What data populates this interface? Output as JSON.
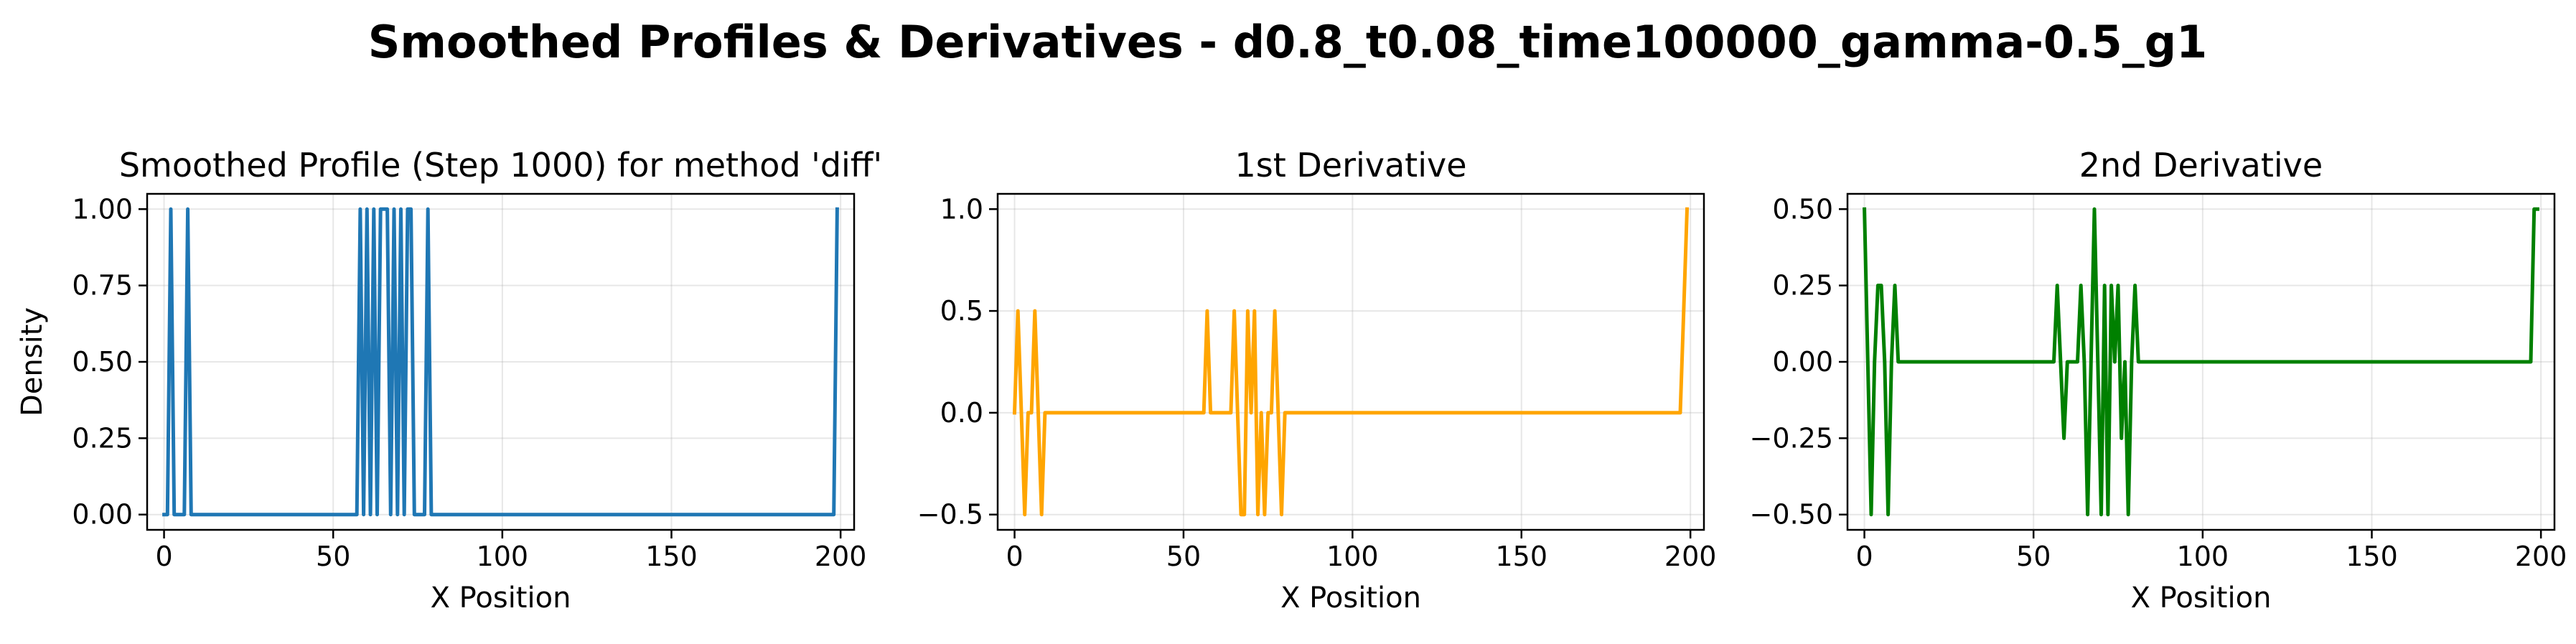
{
  "figure": {
    "title": "Smoothed Profiles & Derivatives - d0.8_t0.08_time100000_gamma-0.5_g1"
  },
  "chart_data": [
    {
      "type": "line",
      "title": "Smoothed Profile (Step 1000) for method 'diff'",
      "xlabel": "X Position",
      "ylabel": "Density",
      "xlim": [
        -5,
        204
      ],
      "ylim": [
        -0.05,
        1.05
      ],
      "xticks": [
        0,
        50,
        100,
        150,
        200
      ],
      "yticks": [
        0.0,
        0.25,
        0.5,
        0.75,
        1.0
      ],
      "xtick_labels": [
        "0",
        "50",
        "100",
        "150",
        "200"
      ],
      "ytick_labels": [
        "0.00",
        "0.25",
        "0.50",
        "0.75",
        "1.00"
      ],
      "grid": true,
      "series": [
        {
          "color": "#1f77b4",
          "x": [
            0,
            1,
            2,
            3,
            6,
            7,
            8,
            57,
            58,
            59,
            60,
            61,
            62,
            63,
            64,
            65,
            66,
            67,
            68,
            69,
            70,
            71,
            72,
            73,
            74,
            77,
            78,
            79,
            198,
            199
          ],
          "y": [
            0,
            0,
            1,
            0,
            0,
            1,
            0,
            0,
            1,
            0,
            1,
            0,
            1,
            0,
            1,
            1,
            1,
            0,
            1,
            0,
            1,
            0,
            1,
            1,
            0,
            0,
            1,
            0,
            0,
            1
          ]
        }
      ]
    },
    {
      "type": "line",
      "title": "1st Derivative",
      "xlabel": "X Position",
      "ylabel": "",
      "xlim": [
        -5,
        204
      ],
      "ylim": [
        -0.575,
        1.075
      ],
      "xticks": [
        0,
        50,
        100,
        150,
        200
      ],
      "yticks": [
        -0.5,
        0.0,
        0.5,
        1.0
      ],
      "xtick_labels": [
        "0",
        "50",
        "100",
        "150",
        "200"
      ],
      "ytick_labels": [
        "−0.5",
        "0.0",
        "0.5",
        "1.0"
      ],
      "grid": true,
      "series": [
        {
          "color": "#ffa500",
          "x": [
            0,
            1,
            2,
            3,
            4,
            5,
            6,
            7,
            8,
            9,
            56,
            57,
            58,
            59,
            60,
            64,
            65,
            66,
            67,
            68,
            69,
            70,
            71,
            72,
            73,
            74,
            75,
            76,
            77,
            78,
            79,
            80,
            197,
            198,
            199
          ],
          "y": [
            0,
            0.5,
            0,
            -0.5,
            0,
            0,
            0.5,
            0,
            -0.5,
            0,
            0,
            0.5,
            0,
            0,
            0,
            0,
            0.5,
            0,
            -0.5,
            -0.5,
            0.5,
            0,
            0.5,
            -0.5,
            0,
            -0.5,
            0,
            0,
            0.5,
            0,
            -0.5,
            0,
            0,
            0.5,
            1.0
          ]
        }
      ]
    },
    {
      "type": "line",
      "title": "2nd Derivative",
      "xlabel": "X Position",
      "ylabel": "",
      "xlim": [
        -5,
        204
      ],
      "ylim": [
        -0.55,
        0.55
      ],
      "xticks": [
        0,
        50,
        100,
        150,
        200
      ],
      "yticks": [
        -0.5,
        -0.25,
        0.0,
        0.25,
        0.5
      ],
      "xtick_labels": [
        "0",
        "50",
        "100",
        "150",
        "200"
      ],
      "ytick_labels": [
        "−0.50",
        "−0.25",
        "0.00",
        "0.25",
        "0.50"
      ],
      "grid": true,
      "series": [
        {
          "color": "#008000",
          "x": [
            0,
            2,
            3,
            4,
            5,
            6,
            7,
            8,
            9,
            10,
            55,
            56,
            57,
            58,
            59,
            60,
            61,
            62,
            63,
            64,
            65,
            66,
            67,
            68,
            69,
            70,
            71,
            72,
            73,
            74,
            75,
            76,
            77,
            78,
            79,
            80,
            81,
            196,
            197,
            198,
            199
          ],
          "y": [
            0.5,
            -0.5,
            0,
            0.25,
            0.25,
            0,
            -0.5,
            0,
            0.25,
            0,
            0,
            0,
            0.25,
            0,
            -0.25,
            0,
            0,
            0,
            0,
            0.25,
            0,
            -0.5,
            0,
            0.5,
            0,
            -0.5,
            0.25,
            -0.5,
            0.25,
            0,
            0.25,
            -0.25,
            0,
            -0.5,
            0,
            0.25,
            0,
            0,
            0,
            0.5,
            0.5
          ]
        }
      ]
    }
  ]
}
